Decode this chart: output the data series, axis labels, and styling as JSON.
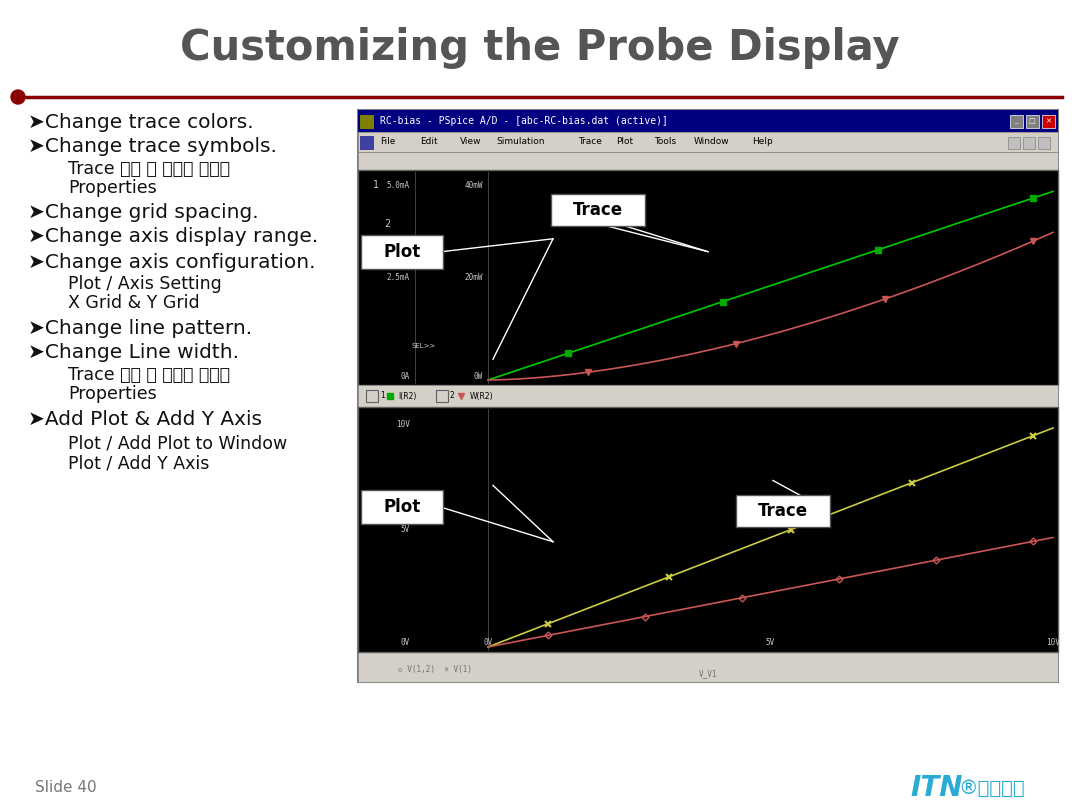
{
  "title": "Customizing the Probe Display",
  "title_color": "#555555",
  "title_fontsize": 30,
  "title_weight": "bold",
  "bg_color": "#ffffff",
  "line_color": "#8B0000",
  "slide_number": "Slide 40",
  "screenshot_title": "RC-bias - PSpice A/D - [abc-RC-bias.dat (active)]",
  "itn_color": "#29ABD4",
  "items": [
    {
      "type": "bullet",
      "text": "➤Change trace colors."
    },
    {
      "type": "bullet",
      "text": "➤Change trace symbols."
    },
    {
      "type": "sub",
      "text": "Trace 선택 후 오른쪽 마우스"
    },
    {
      "type": "sub",
      "text": "Properties"
    },
    {
      "type": "bullet",
      "text": "➤Change grid spacing."
    },
    {
      "type": "bullet",
      "text": "➤Change axis display range."
    },
    {
      "type": "bullet",
      "text": "➤Change axis configuration."
    },
    {
      "type": "sub",
      "text": "Plot / Axis Setting"
    },
    {
      "type": "sub",
      "text": "X Grid & Y Grid"
    },
    {
      "type": "bullet",
      "text": "➤Change line pattern."
    },
    {
      "type": "bullet",
      "text": "➤Change Line width."
    },
    {
      "type": "sub",
      "text": "Trace 선택 후 오른쪽 마우스"
    },
    {
      "type": "sub",
      "text": "Properties"
    },
    {
      "type": "bullet",
      "text": "➤Add Plot & Add Y Axis"
    },
    {
      "type": "sub",
      "text": "Plot / Add Plot to Window"
    },
    {
      "type": "sub",
      "text": "Plot / Add Y Axis"
    }
  ]
}
